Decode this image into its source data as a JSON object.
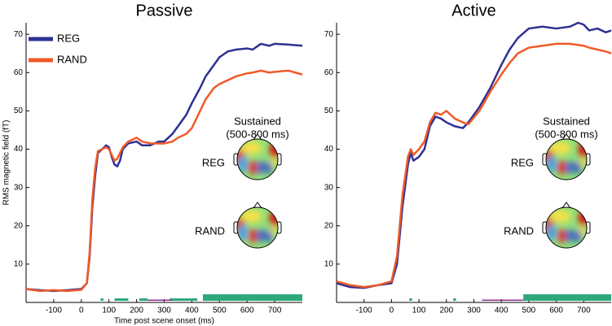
{
  "chart_data": [
    {
      "type": "line",
      "title": "Passive",
      "xlabel": "Time post scene onset (ms)",
      "ylabel": "RMS magnetic field (fT)",
      "x": [
        -200,
        -150,
        -100,
        -50,
        0,
        20,
        30,
        40,
        50,
        60,
        75,
        90,
        100,
        110,
        120,
        130,
        140,
        150,
        170,
        200,
        220,
        250,
        280,
        300,
        330,
        350,
        380,
        400,
        430,
        450,
        480,
        500,
        530,
        560,
        600,
        620,
        650,
        680,
        700,
        750,
        800
      ],
      "series": [
        {
          "name": "REG",
          "color": "#2e3192",
          "values": [
            3.5,
            3.2,
            3,
            3.2,
            3.5,
            5,
            12,
            25,
            33,
            39,
            40,
            41,
            40.5,
            38,
            36,
            35.5,
            37,
            40,
            41.5,
            42,
            41,
            41,
            42,
            42,
            44,
            46,
            49,
            52,
            56,
            59,
            62,
            64,
            65.5,
            66,
            66.3,
            66,
            67.5,
            67,
            67.5,
            67.3,
            67
          ]
        },
        {
          "name": "RAND",
          "color": "#f05a28",
          "values": [
            3.5,
            3,
            3.2,
            3,
            3.3,
            5,
            13,
            27,
            35,
            39.5,
            40,
            40.5,
            40,
            38.5,
            37,
            37.5,
            39,
            40.5,
            42,
            43,
            42,
            41.5,
            41.5,
            41.5,
            42,
            43,
            44,
            45.5,
            50,
            53,
            56,
            57,
            58,
            59,
            59.8,
            60,
            60.5,
            60,
            60.2,
            60.5,
            59.5
          ]
        }
      ],
      "xlim": [
        -200,
        800
      ],
      "xticks": [
        -100,
        0,
        100,
        200,
        300,
        400,
        500,
        600,
        700
      ],
      "ylim": [
        0,
        73
      ],
      "yticks": [
        10,
        20,
        30,
        40,
        50,
        60,
        70
      ],
      "legend": "upper left",
      "significance": [
        {
          "color": "#2ca87a",
          "intervals": [
            [
              70,
              80
            ],
            [
              120,
              170
            ],
            [
              210,
              240
            ],
            [
              320,
              420
            ],
            [
              440,
              800
            ]
          ]
        },
        {
          "color": "#8b2f8b",
          "intervals": [
            [
              240,
              330
            ]
          ]
        }
      ],
      "inset_title": [
        "Sustained",
        "(500-800 ms)"
      ],
      "inset_labels": [
        "REG",
        "RAND"
      ]
    },
    {
      "type": "line",
      "title": "Active",
      "x": [
        -200,
        -150,
        -100,
        -50,
        0,
        20,
        40,
        60,
        70,
        80,
        100,
        120,
        140,
        160,
        180,
        200,
        230,
        260,
        280,
        320,
        360,
        400,
        430,
        460,
        500,
        550,
        600,
        650,
        680,
        700,
        720,
        750,
        780,
        800
      ],
      "series": [
        {
          "color": "#2e3192",
          "values": [
            5,
            4,
            3.8,
            4.5,
            5,
            10,
            25,
            36,
            39,
            37,
            38,
            40,
            46,
            48.5,
            48,
            47,
            46,
            45.5,
            47,
            51,
            56,
            62,
            66,
            69,
            71.5,
            72,
            71.5,
            72,
            73,
            72.5,
            71,
            71.5,
            70.5,
            71
          ]
        },
        {
          "color": "#f05a28",
          "values": [
            5.5,
            4.5,
            4,
            4.5,
            5.5,
            12,
            28,
            38,
            40,
            38.5,
            40,
            42,
            47,
            49.5,
            49,
            50,
            48,
            47,
            46.5,
            50,
            55,
            59.5,
            62.5,
            65,
            66.5,
            67,
            67.5,
            67.5,
            67.2,
            67,
            66.5,
            66,
            65.5,
            65
          ]
        }
      ],
      "xlim": [
        -200,
        800
      ],
      "xticks": [
        -100,
        0,
        100,
        200,
        300,
        400,
        500,
        600,
        700
      ],
      "ylim": [
        0,
        73
      ],
      "yticks": [
        10,
        20,
        30,
        40,
        50,
        60,
        70
      ],
      "significance": [
        {
          "color": "#2ca87a",
          "intervals": [
            [
              65,
              75
            ],
            [
              225,
              235
            ],
            [
              480,
              800
            ]
          ]
        },
        {
          "color": "#8b2f8b",
          "intervals": [
            [
              330,
              480
            ]
          ]
        }
      ],
      "inset_title": [
        "Sustained",
        "(500-800 ms)"
      ],
      "inset_labels": [
        "REG",
        "RAND"
      ]
    }
  ]
}
